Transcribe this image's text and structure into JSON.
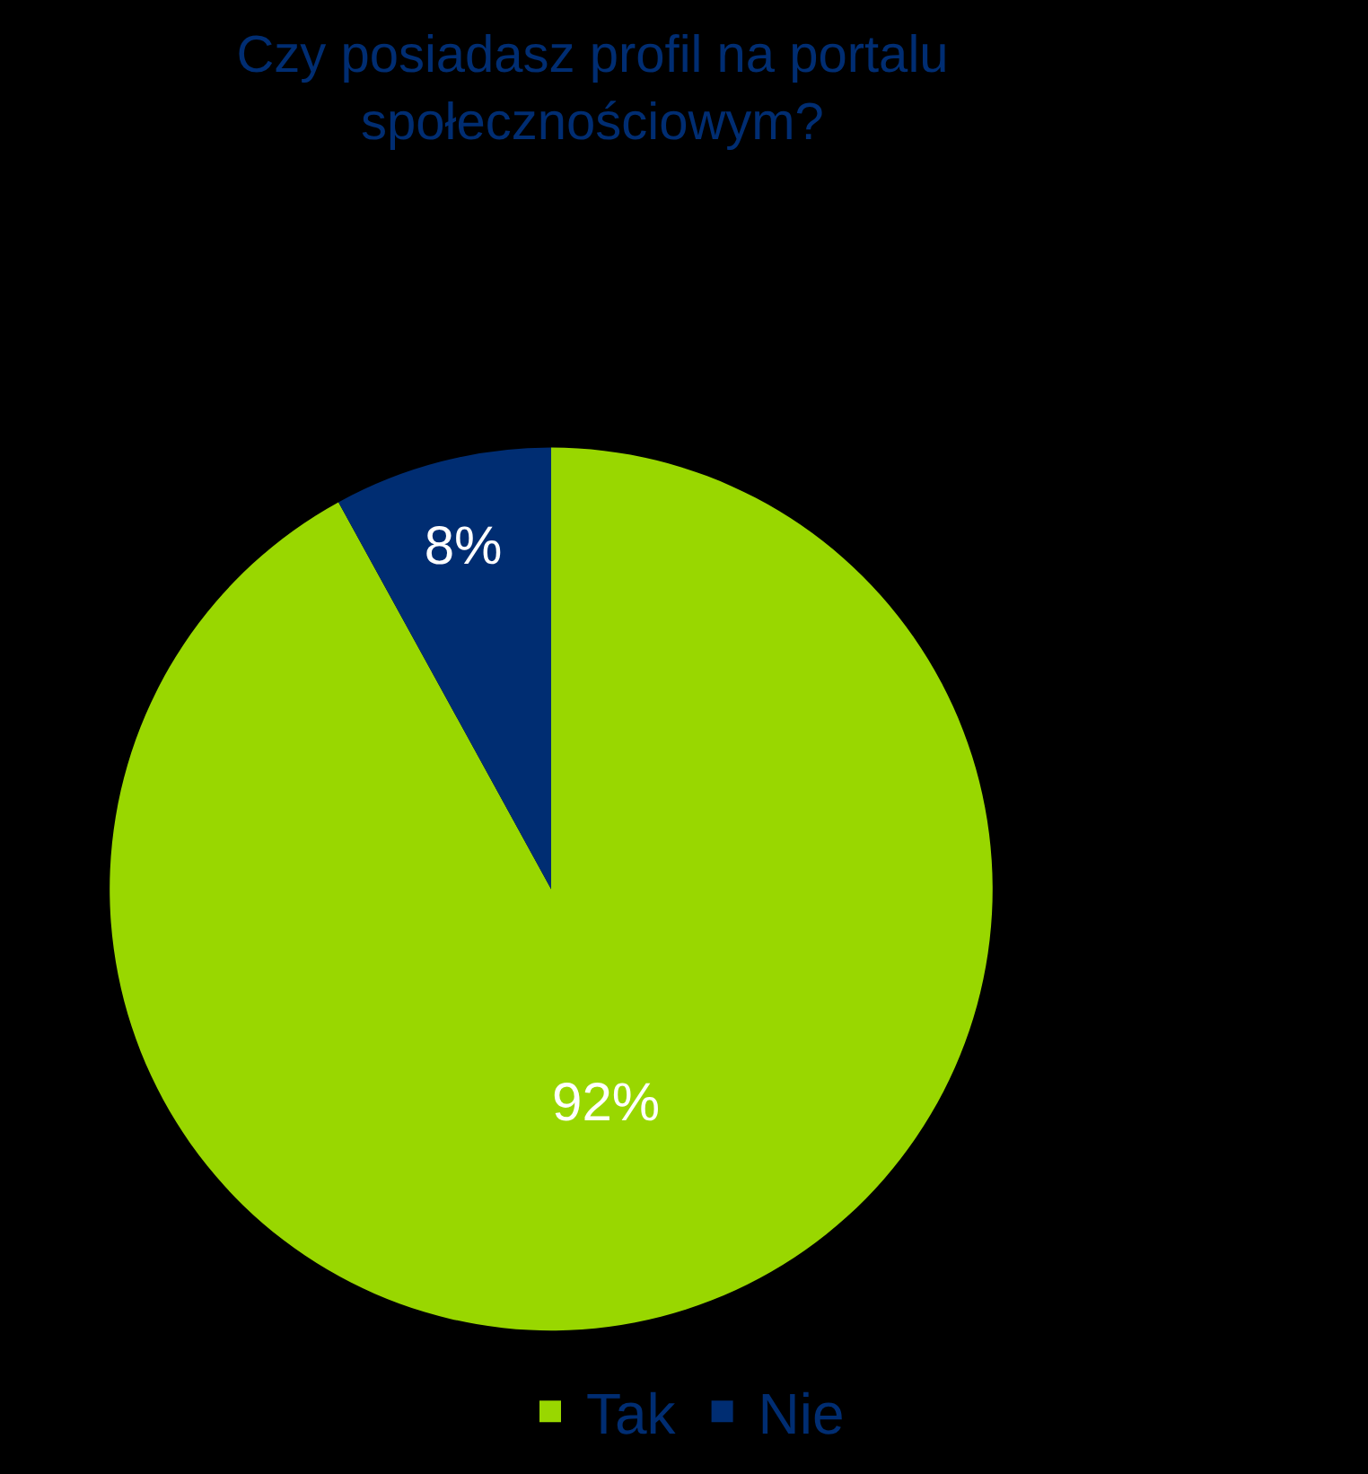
{
  "chart_data": {
    "type": "pie",
    "title": "Czy posiadasz profil na portalu\nspołecznościowym?",
    "categories": [
      "Tak",
      "Nie"
    ],
    "values": [
      92,
      8
    ],
    "colors": [
      "#99d700",
      "#002d72"
    ],
    "value_labels": [
      "92%",
      "8%"
    ],
    "legend": "bottom"
  }
}
